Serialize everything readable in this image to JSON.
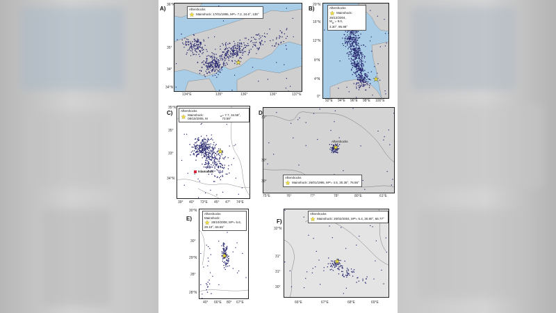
{
  "panels": [
    {
      "id": "A",
      "label": "A)",
      "legend_head": "Aftershocks",
      "legend_main": "Mainshock: 17/01/1995, M",
      "legend_mag": "w",
      "legend_tail": " = 7.2, 34.6°, 135°",
      "lat_ticks": [
        "36°N",
        "35°",
        "34°",
        "34°N"
      ],
      "lon_ticks": [
        "134°E",
        "135°",
        "136°",
        "136°",
        "137°E"
      ],
      "colors": {
        "sea": "#a9cde6",
        "land": "#cfcfcf"
      }
    },
    {
      "id": "B",
      "label": "B)",
      "legend_head": "Aftershocks",
      "legend_main": "Mainshock:",
      "legend_line2": "26/12/2004,",
      "legend_line3": "M",
      "legend_mag": "w",
      "legend_tail": " = 9.0,",
      "legend_line4": "3.30°, 95.98°",
      "lat_ticks": [
        "20°N",
        "16°N",
        "12°N",
        "8°N",
        "4°N",
        "0°"
      ],
      "lon_ticks": [
        "92°E",
        "94°E",
        "96°E",
        "98°E",
        "100°E"
      ],
      "colors": {
        "sea": "#a9cde6",
        "land": "#cfcfcf"
      }
    },
    {
      "id": "C",
      "label": "C)",
      "legend_head": "Aftershocks",
      "legend_main": "Mainshock: 08/10/2005, M",
      "legend_mag": "w",
      "legend_tail": " = 7.7, 34.58°, 73.59°",
      "city": "Islamabad",
      "lat_ticks": [
        "35°N",
        "35°",
        "33°",
        "34°N"
      ],
      "lon_ticks": [
        "39°",
        "40°",
        "73°E",
        "45°",
        "47°",
        "74°E"
      ],
      "colors": {
        "land": "#ffffff"
      }
    },
    {
      "id": "D",
      "label": "D)",
      "legend_head": "Aftershocks",
      "legend_main": "Mainshock: 26/01/1995, M",
      "legend_mag": "w",
      "legend_tail": " = 4.5, 30.36°, 76.56°",
      "region_label": "Aftershocks",
      "lat_ticks": [
        "31°",
        "30°",
        "30°"
      ],
      "lon_ticks": [
        "75°E",
        "76°",
        "77°",
        "78°",
        "80°E",
        "61°E"
      ],
      "colors": {
        "land": "#d4d4d4"
      }
    },
    {
      "id": "E",
      "label": "E)",
      "legend_head": "Aftershocks",
      "legend_main": "Mainshock:",
      "legend_line2": "28/10/2008, M",
      "legend_mag": "w",
      "legend_tail": " = 6.6,",
      "legend_line4": "29.10°, 65.55°",
      "lat_ticks": [
        "30°N",
        "30°",
        "29°N",
        "28°",
        "28°N"
      ],
      "lon_ticks": [
        "40°",
        "66°E",
        "80°",
        "67°E"
      ],
      "colors": {
        "land": "#ffffff"
      }
    },
    {
      "id": "F",
      "label": "F)",
      "legend_head": "Aftershocks",
      "legend_main": "Mainshock: 20/02/2004, M",
      "legend_mag": "w",
      "legend_tail": " = 6.4, 30.80°, 66.77°",
      "lat_ticks": [
        "32°N",
        "31°",
        "31°",
        "30°"
      ],
      "lon_ticks": [
        "66°E",
        "67°E",
        "68°E",
        "69°E"
      ],
      "colors": {
        "land": "#e4e4e4"
      }
    }
  ],
  "colors": {
    "point": "#25256e",
    "star": "#f1df3a",
    "city": "#d6263a"
  }
}
